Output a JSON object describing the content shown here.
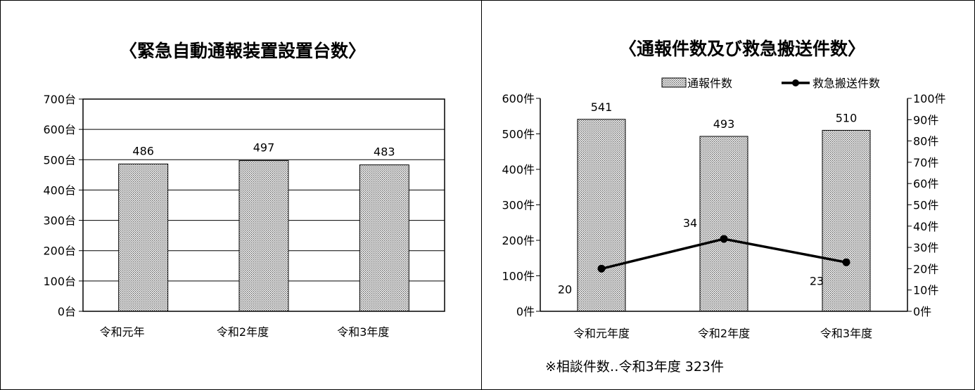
{
  "charts": {
    "left": {
      "title": "〈緊急自動通報装置設置台数〉",
      "y_unit": "台"
    },
    "right": {
      "title": "〈通報件数及び救急搬送件数〉",
      "y_unit": "件",
      "note": "※相談件数‥令和3年度 323件"
    }
  },
  "colors": {
    "bar_fill": "#d9d9d9",
    "line": "#000000"
  },
  "chart_data": [
    {
      "type": "bar",
      "title": "〈緊急自動通報装置設置台数〉",
      "categories": [
        "令和元年",
        "令和2年度",
        "令和3年度"
      ],
      "values": [
        486,
        497,
        483
      ],
      "ylim": [
        0,
        700
      ],
      "ytick_step": 100,
      "unit": "台",
      "grid": true
    },
    {
      "type": "bar+line",
      "title": "〈通報件数及び救急搬送件数〉",
      "categories": [
        "令和元年度",
        "令和2年度",
        "令和3年度"
      ],
      "series": [
        {
          "name": "通報件数",
          "type": "bar",
          "axis": "left",
          "values": [
            541,
            493,
            510
          ]
        },
        {
          "name": "救急搬送件数",
          "type": "line",
          "axis": "right",
          "values": [
            20,
            34,
            23
          ]
        }
      ],
      "ylim": [
        0,
        600
      ],
      "ytick_step": 100,
      "y2lim": [
        0,
        100
      ],
      "y2tick_step": 10,
      "unit": "件",
      "legend": "top-right",
      "grid": false
    }
  ]
}
